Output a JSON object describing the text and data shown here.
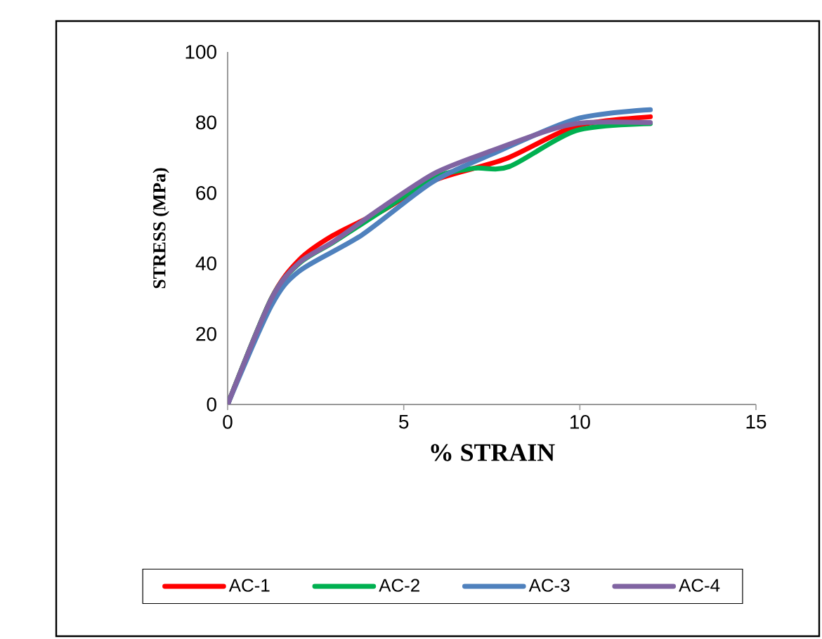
{
  "chart_data": {
    "type": "line",
    "xlabel": "% STRAIN",
    "ylabel": "STRESS (MPa)",
    "xlim": [
      0,
      15
    ],
    "ylim": [
      0,
      100
    ],
    "xticks": [
      0,
      5,
      10,
      15
    ],
    "yticks": [
      0,
      20,
      40,
      60,
      80,
      100
    ],
    "grid": false,
    "legend": "bottom",
    "marker": "none",
    "line_style": "solid",
    "series": [
      {
        "name": "AC-1",
        "color": "#ff0000",
        "x": [
          0,
          1.24,
          2.03,
          3.0,
          4.4,
          5.9,
          7.9,
          9.9,
          12.0
        ],
        "values": [
          0,
          30,
          41,
          48,
          55,
          63.7,
          69.7,
          79,
          81.6
        ]
      },
      {
        "name": "AC-2",
        "color": "#00b050",
        "x": [
          0,
          1.24,
          2.03,
          3.0,
          4.4,
          5.9,
          7.0,
          8.0,
          9.9,
          12.0
        ],
        "values": [
          0,
          30,
          40,
          46,
          55,
          64.5,
          67,
          67.5,
          77.7,
          79.7
        ]
      },
      {
        "name": "AC-3",
        "color": "#4f81bd",
        "x": [
          0,
          1.24,
          2.03,
          3.8,
          5.8,
          7.5,
          9.9,
          12.0
        ],
        "values": [
          0,
          28,
          37.8,
          48,
          63,
          71,
          81,
          83.6
        ]
      },
      {
        "name": "AC-4",
        "color": "#8064a2",
        "x": [
          0,
          1.24,
          2.03,
          3.0,
          4.4,
          5.9,
          7.5,
          9.2,
          10.2,
          12.0
        ],
        "values": [
          0,
          29.9,
          40.2,
          46.2,
          56,
          65.7,
          72,
          78,
          80,
          80
        ]
      }
    ]
  }
}
